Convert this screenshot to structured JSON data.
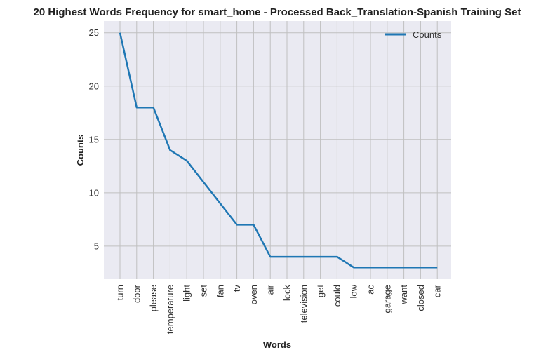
{
  "chart_data": {
    "type": "line",
    "title": "20 Highest Words Frequency for smart_home - Processed Back_Translation-Spanish Training Set",
    "xlabel": "Words",
    "ylabel": "Counts",
    "categories": [
      "turn",
      "door",
      "please",
      "temperature",
      "light",
      "set",
      "fan",
      "tv",
      "oven",
      "air",
      "lock",
      "television",
      "get",
      "could",
      "low",
      "ac",
      "garage",
      "want",
      "closed",
      "car"
    ],
    "series": [
      {
        "name": "Counts",
        "values": [
          25,
          18,
          18,
          14,
          13,
          11,
          9,
          7,
          7,
          4,
          4,
          4,
          4,
          4,
          3,
          3,
          3,
          3,
          3,
          3
        ]
      }
    ],
    "ylim": [
      1.9,
      26.1
    ],
    "yticks": [
      5,
      10,
      15,
      20,
      25
    ],
    "grid": true,
    "legend": "top-right",
    "colors": {
      "line": "#1f77b4",
      "plot_bg": "#eaeaf2",
      "grid": "#c0c0c0"
    }
  }
}
